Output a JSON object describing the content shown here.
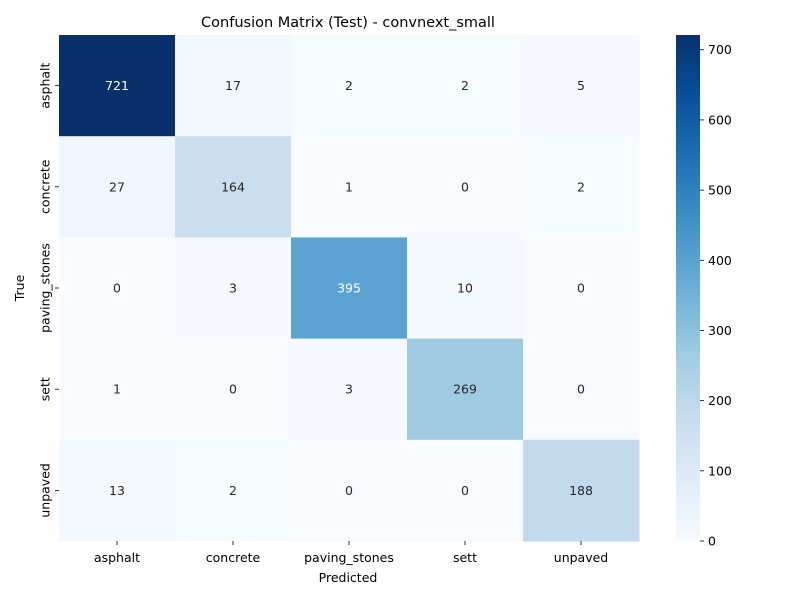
{
  "chart_data": {
    "type": "heatmap",
    "title": "Confusion Matrix (Test) - convnext_small",
    "xlabel": "Predicted",
    "ylabel": "True",
    "x_categories": [
      "asphalt",
      "concrete",
      "paving_stones",
      "sett",
      "unpaved"
    ],
    "y_categories": [
      "asphalt",
      "concrete",
      "paving_stones",
      "sett",
      "unpaved"
    ],
    "values": [
      [
        721,
        17,
        2,
        2,
        5
      ],
      [
        27,
        164,
        1,
        0,
        2
      ],
      [
        0,
        3,
        395,
        10,
        0
      ],
      [
        1,
        0,
        3,
        269,
        0
      ],
      [
        13,
        2,
        0,
        0,
        188
      ]
    ],
    "colorbar": {
      "min": 0,
      "max": 721,
      "ticks": [
        0,
        100,
        200,
        300,
        400,
        500,
        600,
        700
      ]
    },
    "colormap": "Blues",
    "colors": {
      "low": "#f7fbff",
      "high": "#08306b",
      "text_dark": "#262626",
      "text_light": "#ffffff"
    }
  }
}
